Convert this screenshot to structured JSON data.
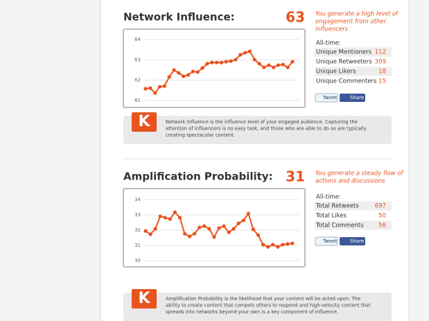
{
  "chart_data": [
    {
      "type": "line",
      "color": "#e8531e",
      "ylim": [
        61,
        64
      ],
      "yticks": [
        61,
        62,
        63,
        64
      ],
      "grid": true,
      "values": [
        61.58,
        61.61,
        61.37,
        61.68,
        61.71,
        62.16,
        62.5,
        62.36,
        62.19,
        62.26,
        62.43,
        62.4,
        62.6,
        62.81,
        62.87,
        62.87,
        62.87,
        62.91,
        62.94,
        63.01,
        63.25,
        63.35,
        63.42,
        63.01,
        62.81,
        62.63,
        62.74,
        62.63,
        62.74,
        62.77,
        62.63,
        62.91
      ]
    },
    {
      "type": "line",
      "color": "#e8531e",
      "ylim": [
        30,
        34
      ],
      "yticks": [
        30,
        31,
        32,
        33,
        34
      ],
      "grid": true,
      "values": [
        31.95,
        31.73,
        32.09,
        32.91,
        32.82,
        32.73,
        33.18,
        32.82,
        31.77,
        31.59,
        31.77,
        32.18,
        32.27,
        32.09,
        31.55,
        32.14,
        32.27,
        31.86,
        32.09,
        32.45,
        32.64,
        33.09,
        32.05,
        31.68,
        31.05,
        30.91,
        31.05,
        30.91,
        31.05,
        31.09,
        31.14
      ]
    }
  ],
  "sections": [
    {
      "title": "Network Influence:",
      "score": "63",
      "description": [
        "You generate a high level of",
        "engagement from other",
        "influencers"
      ],
      "table_header": "All-time:",
      "rows": [
        [
          "Unique Mentioners",
          "112"
        ],
        [
          "Unique Retweeters",
          "309"
        ],
        [
          "Unique Likers",
          "18"
        ],
        [
          "Unique Commenters",
          "15"
        ]
      ],
      "tweet": "Tweet",
      "share": "Share",
      "logo": "K",
      "info": [
        "Network Influence is the influence level of your engaged audience. Capturing the",
        "attention of influencers is no easy task, and those who are able to do so are typically",
        "creating spectacular content."
      ]
    },
    {
      "title": "Amplification Probability:",
      "score": "31",
      "description": [
        "You generate a steady flow of",
        "actions and discussions"
      ],
      "table_header": "All-time:",
      "rows": [
        [
          "Total Retweets",
          "697"
        ],
        [
          "Total Likes",
          "50"
        ],
        [
          "Total Comments",
          "56"
        ]
      ],
      "tweet": "Tweet",
      "share": "Share",
      "logo": "K",
      "info": [
        "Amplification Probability is the likelihood that your content will be acted upon. The",
        "ability to create content that compels others to respond and high-velocity content that",
        "spreads into networks beyond your own is a key component of influence."
      ]
    }
  ]
}
